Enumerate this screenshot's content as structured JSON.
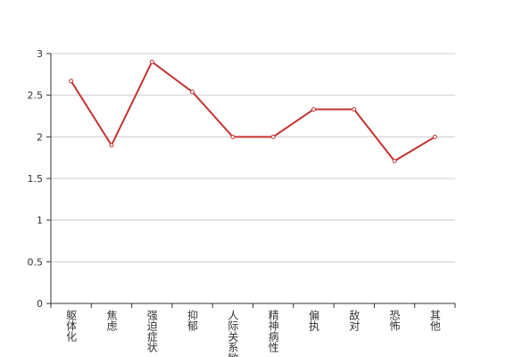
{
  "chart_data": {
    "type": "line",
    "categories": [
      "躯体化",
      "焦虑",
      "强迫症状",
      "抑郁",
      "人际关系敏感",
      "精神病性",
      "偏执",
      "敌对",
      "恐怖",
      "其他"
    ],
    "series": [
      {
        "color": "#c23531",
        "values": [
          2.67,
          1.9,
          2.9,
          2.54,
          2.0,
          2.0,
          2.33,
          2.33,
          1.71,
          2.0
        ]
      }
    ],
    "ylim": [
      0,
      3
    ],
    "yticks": [
      0,
      0.5,
      1,
      1.5,
      2,
      2.5,
      3
    ],
    "grid": true
  }
}
